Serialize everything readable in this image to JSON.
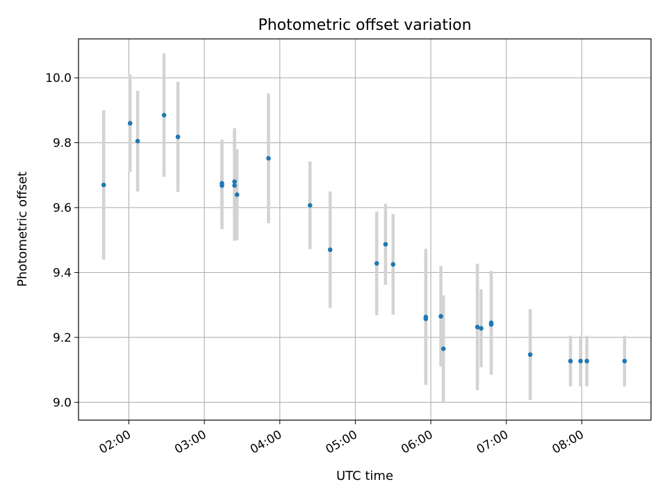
{
  "chart_data": {
    "type": "scatter",
    "title": "Photometric offset variation",
    "xlabel": "UTC time",
    "ylabel": "Photometric offset",
    "x_axis": "time",
    "xlim": [
      "01:20",
      "08:55"
    ],
    "ylim": [
      8.945,
      10.12
    ],
    "x_ticks": [
      "02:00",
      "03:00",
      "04:00",
      "05:00",
      "06:00",
      "07:00",
      "08:00"
    ],
    "y_ticks": [
      "9.0",
      "9.2",
      "9.4",
      "9.6",
      "9.8",
      "10.0"
    ],
    "grid": true,
    "legend": "none",
    "colors": {
      "point": "#1f77b4",
      "errorbar": "#d3d3d3",
      "grid": "#b0b0b0"
    },
    "points": [
      {
        "x": "01:40",
        "y": 9.67,
        "err": 0.23
      },
      {
        "x": "02:01",
        "y": 9.86,
        "err": 0.15
      },
      {
        "x": "02:07",
        "y": 9.805,
        "err": 0.155
      },
      {
        "x": "02:28",
        "y": 9.885,
        "err": 0.19
      },
      {
        "x": "02:39",
        "y": 9.818,
        "err": 0.17
      },
      {
        "x": "03:14",
        "y": 9.675,
        "err": 0.135
      },
      {
        "x": "03:14",
        "y": 9.668,
        "err": 0.135
      },
      {
        "x": "03:24",
        "y": 9.68,
        "err": 0.165
      },
      {
        "x": "03:24",
        "y": 9.668,
        "err": 0.17
      },
      {
        "x": "03:26",
        "y": 9.64,
        "err": 0.14
      },
      {
        "x": "03:51",
        "y": 9.752,
        "err": 0.2
      },
      {
        "x": "04:24",
        "y": 9.607,
        "err": 0.135
      },
      {
        "x": "04:40",
        "y": 9.47,
        "err": 0.18
      },
      {
        "x": "05:17",
        "y": 9.428,
        "err": 0.16
      },
      {
        "x": "05:24",
        "y": 9.487,
        "err": 0.125
      },
      {
        "x": "05:30",
        "y": 9.425,
        "err": 0.155
      },
      {
        "x": "05:56",
        "y": 9.263,
        "err": 0.21
      },
      {
        "x": "05:56",
        "y": 9.257,
        "err": 0.2
      },
      {
        "x": "06:08",
        "y": 9.265,
        "err": 0.155
      },
      {
        "x": "06:10",
        "y": 9.165,
        "err": 0.165
      },
      {
        "x": "06:37",
        "y": 9.232,
        "err": 0.195
      },
      {
        "x": "06:40",
        "y": 9.228,
        "err": 0.12
      },
      {
        "x": "06:48",
        "y": 9.245,
        "err": 0.16
      },
      {
        "x": "06:48",
        "y": 9.24,
        "err": 0.15
      },
      {
        "x": "07:19",
        "y": 9.147,
        "err": 0.14
      },
      {
        "x": "07:51",
        "y": 9.127,
        "err": 0.078
      },
      {
        "x": "07:59",
        "y": 9.127,
        "err": 0.078
      },
      {
        "x": "08:04",
        "y": 9.127,
        "err": 0.078
      },
      {
        "x": "08:34",
        "y": 9.127,
        "err": 0.078
      }
    ]
  }
}
